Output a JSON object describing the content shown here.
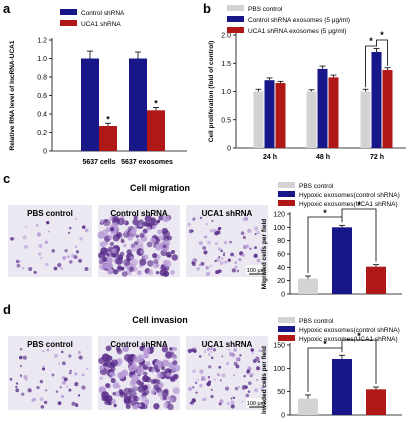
{
  "colors": {
    "pbs": "#d3d3d3",
    "control": "#17178a",
    "uca1": "#b01818",
    "stain_dark": "#5a2d8a",
    "stain_light": "#b79ad6",
    "micro_bg": "#ece8f2"
  },
  "panel_letters": {
    "a": "a",
    "b": "b",
    "c": "c",
    "d": "d"
  },
  "panel_c": {
    "title": "Cell migration",
    "images": [
      "PBS control",
      "Control shRNA",
      "UCA1 shRNA"
    ],
    "scale_bar": "100 μm"
  },
  "panel_d": {
    "title": "Cell invasion",
    "images": [
      "PBS control",
      "Control shRNA",
      "UCA1 shRNA"
    ],
    "scale_bar": "100 μm"
  },
  "chart_data": [
    {
      "id": "a",
      "type": "bar",
      "ylabel": "Relative RNA level of lncRNA-UCA1",
      "ylim": [
        0,
        1.2
      ],
      "yticks": [
        "0",
        "0.2",
        "0.4",
        "0.6",
        "0.8",
        "1.0",
        "1.2"
      ],
      "categories": [
        "5637 cells",
        "5637 exosomes"
      ],
      "legend": [
        "Control shRNA",
        "UCA1 shRNA"
      ],
      "series": [
        {
          "name": "Control shRNA",
          "values": [
            1.0,
            1.0
          ],
          "errors": [
            0.08,
            0.07
          ]
        },
        {
          "name": "UCA1 shRNA",
          "values": [
            0.27,
            0.44
          ],
          "errors": [
            0.03,
            0.03
          ]
        }
      ],
      "significance": [
        "*",
        "*"
      ]
    },
    {
      "id": "b",
      "type": "bar",
      "ylabel": "Cell proliferation (fold of control)",
      "ylim": [
        0,
        2.0
      ],
      "yticks": [
        "0",
        "0.5",
        "1.0",
        "1.5",
        "2.0"
      ],
      "categories": [
        "24 h",
        "48 h",
        "72 h"
      ],
      "legend": [
        "PBS control",
        "Control shRNA exosomes (5 μg/ml)",
        "UCA1 shRNA exosomes (5 μg/ml)"
      ],
      "series": [
        {
          "name": "PBS control",
          "values": [
            1.0,
            1.0,
            1.0
          ],
          "errors": [
            0.04,
            0.03,
            0.04
          ]
        },
        {
          "name": "Control shRNA exosomes (5 μg/ml)",
          "values": [
            1.2,
            1.4,
            1.7
          ],
          "errors": [
            0.04,
            0.05,
            0.06
          ]
        },
        {
          "name": "UCA1 shRNA exosomes (5 μg/ml)",
          "values": [
            1.15,
            1.25,
            1.38
          ],
          "errors": [
            0.03,
            0.04,
            0.04
          ]
        }
      ],
      "significance": [
        "*",
        "*"
      ]
    },
    {
      "id": "c",
      "type": "bar",
      "ylabel": "Migrated cells per field",
      "ylim": [
        0,
        120
      ],
      "yticks": [
        "0",
        "20",
        "40",
        "60",
        "80",
        "100",
        "120"
      ],
      "categories": [
        "PBS control",
        "Hypoxic exosomes(control shRNA)",
        "Hypoxic exosomes(UCA1 shRNA)"
      ],
      "legend": [
        "PBS control",
        "Hypoxic exosomes(control shRNA)",
        "Hypoxic exosomes(UCA1 shRNA)"
      ],
      "values": [
        23,
        100,
        41
      ],
      "errors": [
        4,
        3,
        3
      ],
      "significance": [
        "*",
        "*"
      ]
    },
    {
      "id": "d",
      "type": "bar",
      "ylabel": "Invaded cells per field",
      "ylim": [
        0,
        150
      ],
      "yticks": [
        "0",
        "50",
        "100",
        "150"
      ],
      "categories": [
        "PBS control",
        "Hypoxic exosomes(control shRNA)",
        "Hypoxic exosomes(UCA1 shRNA)"
      ],
      "legend": [
        "PBS control",
        "Hypoxic exosomes(control shRNA)",
        "Hypoxic exosomes(UCA1 shRNA)"
      ],
      "values": [
        35,
        120,
        55
      ],
      "errors": [
        8,
        8,
        5
      ],
      "significance": [
        "*",
        "*"
      ]
    }
  ]
}
